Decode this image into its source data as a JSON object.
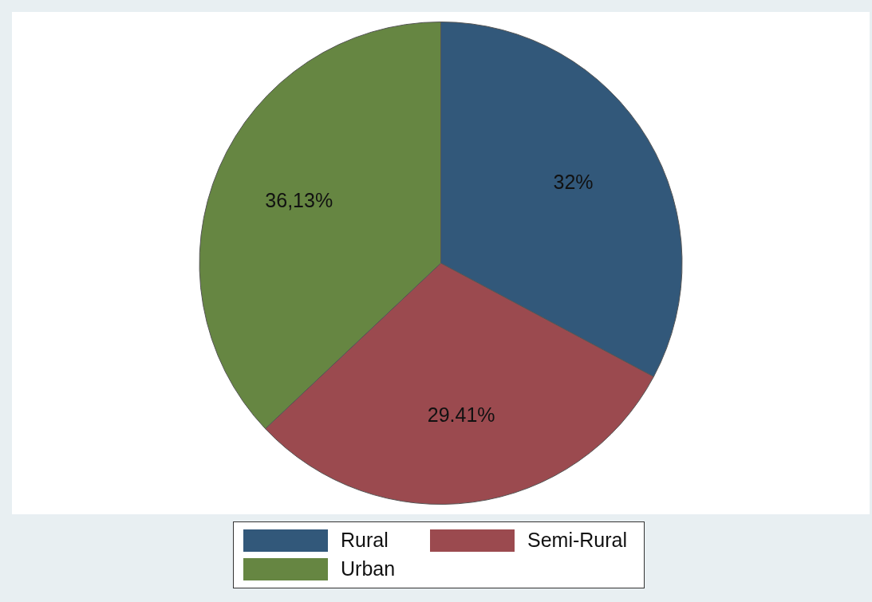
{
  "chart_data": {
    "type": "pie",
    "categories": [
      "Rural",
      "Semi-Rural",
      "Urban"
    ],
    "values": [
      32,
      29.41,
      36.13
    ],
    "colors": [
      "#32587a",
      "#9b4a4f",
      "#668642"
    ],
    "value_labels": [
      "32%",
      "29.41%",
      "36,13%"
    ],
    "legend": "bottom"
  }
}
